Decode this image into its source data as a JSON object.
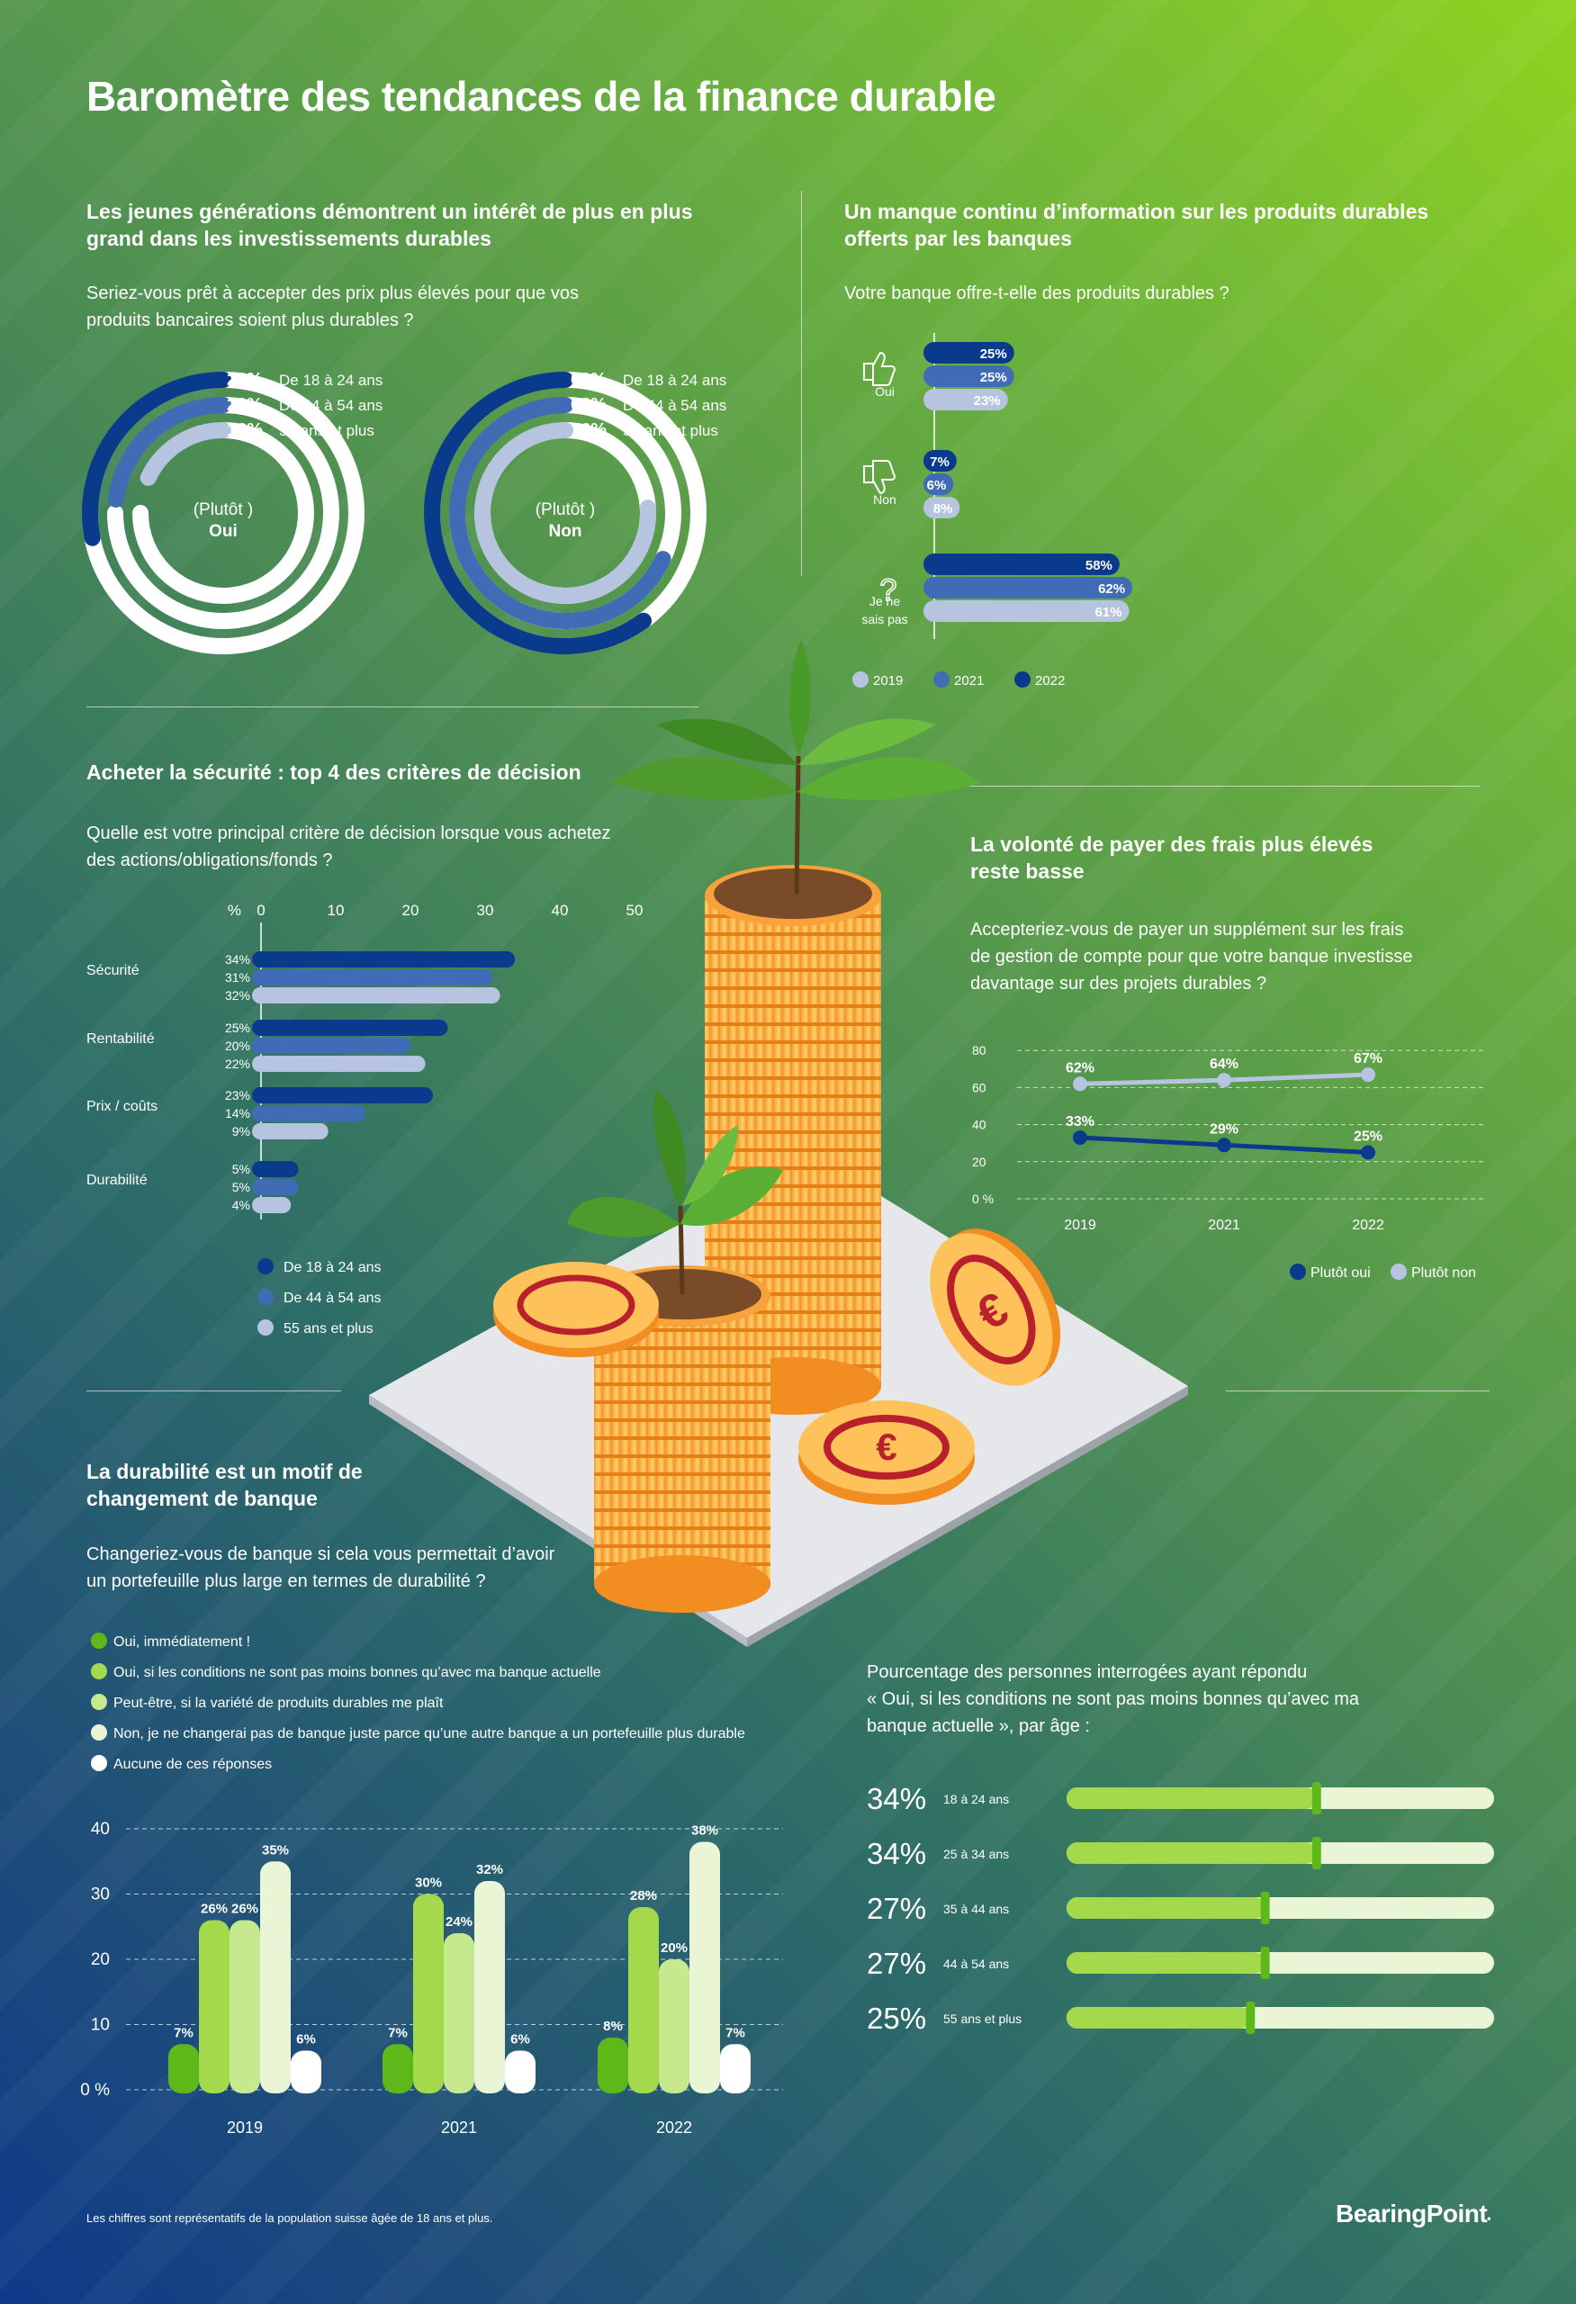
{
  "title": "Baromètre des tendances de la finance durable",
  "colors": {
    "dark": "#0a3a8c",
    "mid": "#3f6cb4",
    "light": "#b6c4e0",
    "g1": "#5fb81a",
    "g2": "#a3d94a",
    "g3": "#c6e88e",
    "g4": "#eaf5d6",
    "g5": "#ffffff"
  },
  "s1": {
    "heading_l1": "Les jeunes générations démontrent un intérêt de plus en plus",
    "heading_l2": "grand dans les investissements durables",
    "question_l1": "Seriez-vous prêt à accepter des prix plus élevés pour que vos",
    "question_l2": "produits bancaires soient plus durables ?"
  },
  "s2": {
    "heading_l1": "Un manque continu d’information sur les produits durables",
    "heading_l2": "offerts par les banques",
    "question": "Votre banque offre-t-elle des produits durables ?"
  },
  "s3": {
    "heading": "Acheter la sécurité : top 4 des critères de décision",
    "question_l1": "Quelle est votre principal critère de décision lorsque vous achetez",
    "question_l2": "des actions/obligations/fonds ?"
  },
  "s4": {
    "heading_l1": "La volonté de payer des frais plus élevés",
    "heading_l2": "reste basse",
    "question_l1": "Accepteriez-vous de payer un supplément sur les frais",
    "question_l2": "de gestion de compte pour que votre banque investisse",
    "question_l3": "davantage sur des projets durables ?"
  },
  "s5": {
    "heading_l1": "La durabilité est un motif de",
    "heading_l2": "changement de banque",
    "question_l1": "Changeriez-vous de banque si cela vous permettait d’avoir",
    "question_l2": "un portefeuille plus large en termes de durabilité ?"
  },
  "s6": {
    "heading_l1": "Pourcentage des personnes interrogées ayant répondu",
    "heading_l2": "« Oui, si les conditions ne sont pas moins bonnes qu’avec ma",
    "heading_l3": "banque actuelle », par âge :"
  },
  "footer": "Les chiffres sont représentatifs de la population suisse âgée de 18 ans et plus.",
  "logo": "BearingPoint",
  "chart_data": [
    {
      "type": "radial-bar",
      "center_label": [
        "(Plutôt )",
        "Oui"
      ],
      "max": 100,
      "series": [
        {
          "name": "De 18 à 24 ans",
          "value": 28,
          "label": "28%"
        },
        {
          "name": "De 44 à 54 ans",
          "value": 23,
          "label": "23%"
        },
        {
          "name": "55 ans et plus",
          "value": 18,
          "label": "18%"
        }
      ]
    },
    {
      "type": "radial-bar",
      "center_label": [
        "(Plutôt )",
        "Non"
      ],
      "max": 100,
      "series": [
        {
          "name": "De 18 à 24 ans",
          "value": 60,
          "label": "60%"
        },
        {
          "name": "De 44 à 54 ans",
          "value": 68,
          "label": "68%"
        },
        {
          "name": "55 ans et plus",
          "value": 76,
          "label": "76%"
        }
      ]
    },
    {
      "type": "bar",
      "orientation": "horizontal",
      "categories": [
        "Oui",
        "Non",
        "Je ne sais pas"
      ],
      "category_lines": [
        [
          "Oui"
        ],
        [
          "Non"
        ],
        [
          "Je ne",
          "sais pas"
        ]
      ],
      "series": [
        {
          "name": "2022",
          "values": [
            25,
            7,
            58
          ]
        },
        {
          "name": "2021",
          "values": [
            25,
            6,
            62
          ]
        },
        {
          "name": "2019",
          "values": [
            23,
            8,
            61
          ]
        }
      ],
      "legend": [
        "2019",
        "2021",
        "2022"
      ],
      "legend_placement": "bottom"
    },
    {
      "type": "bar",
      "orientation": "horizontal",
      "categories": [
        "Sécurité",
        "Rentabilité",
        "Prix / coûts",
        "Durabilité"
      ],
      "series": [
        {
          "name": "De 18 à 24 ans",
          "values": [
            34,
            25,
            23,
            5
          ]
        },
        {
          "name": "De 44 à 54 ans",
          "values": [
            31,
            20,
            14,
            5
          ]
        },
        {
          "name": "55 ans et plus",
          "values": [
            32,
            22,
            9,
            4
          ]
        }
      ],
      "xunit": "%",
      "xticks": [
        0,
        10,
        20,
        30,
        40,
        50
      ],
      "xlim": [
        0,
        50
      ],
      "legend_placement": "bottom-left"
    },
    {
      "type": "line",
      "x": [
        "2019",
        "2021",
        "2022"
      ],
      "series": [
        {
          "name": "Plutôt non",
          "values": [
            62,
            64,
            67
          ]
        },
        {
          "name": "Plutôt oui",
          "values": [
            33,
            29,
            25
          ]
        }
      ],
      "yticks": [
        "0 %",
        "20",
        "40",
        "60",
        "80"
      ],
      "ylim": [
        0,
        80
      ],
      "grid": true,
      "legend": [
        "Plutôt oui",
        "Plutôt non"
      ],
      "legend_placement": "bottom-right"
    },
    {
      "type": "bar",
      "categories": [
        "2019",
        "2021",
        "2022"
      ],
      "series": [
        {
          "name": "Oui, immédiatement !",
          "values": [
            7,
            7,
            8
          ]
        },
        {
          "name": "Oui, si les conditions ne sont pas moins bonnes qu’avec ma banque actuelle",
          "values": [
            26,
            30,
            28
          ]
        },
        {
          "name": "Peut-être, si la variété de produits durables me plaît",
          "values": [
            26,
            24,
            20
          ]
        },
        {
          "name": "Non, je ne changerai pas de banque juste parce qu’une autre banque a un portefeuille plus durable",
          "values": [
            35,
            32,
            38
          ]
        },
        {
          "name": "Aucune de ces réponses",
          "values": [
            6,
            6,
            7
          ]
        }
      ],
      "yticks": [
        "0 %",
        "10",
        "20",
        "30",
        "40"
      ],
      "ylim": [
        0,
        40
      ],
      "grid": true,
      "legend_placement": "top"
    },
    {
      "type": "bar",
      "orientation": "horizontal",
      "categories": [
        "18 à 24 ans",
        "25 à 34 ans",
        "35 à 44 ans",
        "44 à 54 ans",
        "55 ans et plus"
      ],
      "values": [
        34,
        34,
        27,
        27,
        25
      ],
      "max": 100
    }
  ]
}
